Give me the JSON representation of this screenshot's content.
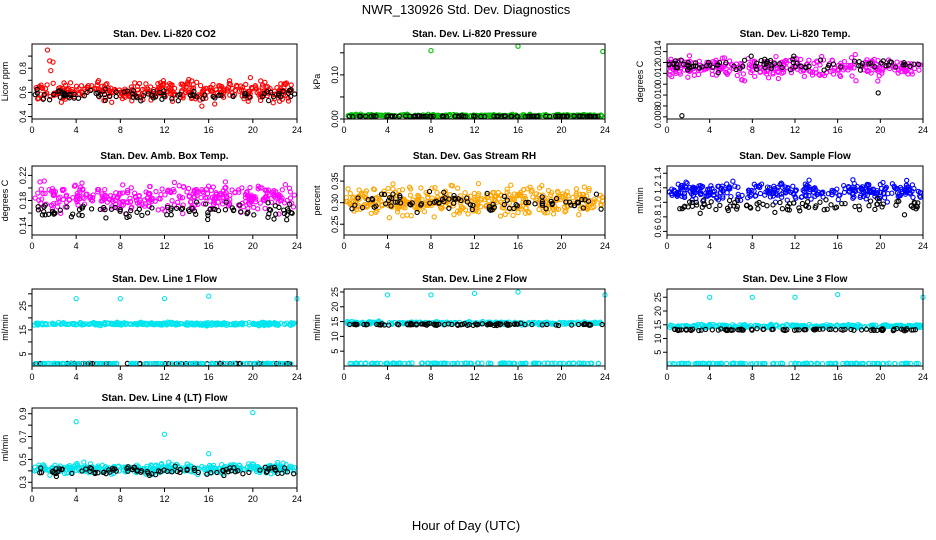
{
  "figure": {
    "title": "NWR_130926  Std. Dev. Diagnostics",
    "xlabel": "Hour of Day (UTC)"
  },
  "chart_data": [
    {
      "type": "scatter",
      "title": "Stan. Dev. Li-820 CO2",
      "ylabel": "Licor ppm",
      "xlim": [
        0,
        24
      ],
      "ylim": [
        0.38,
        1.0
      ],
      "yticks": [
        0.4,
        0.5,
        0.6,
        0.7,
        0.8,
        0.9
      ],
      "yticklabels": [
        "0.4",
        "",
        "0.6",
        "",
        "0.8",
        ""
      ],
      "xticks": [
        0,
        4,
        8,
        12,
        16,
        20,
        24
      ],
      "series": [
        {
          "color": "#ff0000",
          "baseline": 0.61,
          "spread": 0.07,
          "n": 340,
          "outliers": [
            [
              1.4,
              0.95
            ],
            [
              1.6,
              0.86
            ],
            [
              1.9,
              0.85
            ],
            [
              1.7,
              0.78
            ]
          ]
        },
        {
          "color": "#000000",
          "baseline": 0.58,
          "spread": 0.04,
          "n": 90
        }
      ]
    },
    {
      "type": "scatter",
      "title": "Stan. Dev. Li-820 Pressure",
      "ylabel": "kPa",
      "xlim": [
        0,
        24
      ],
      "ylim": [
        0.0,
        0.17
      ],
      "yticks": [
        0.0,
        0.05,
        0.1,
        0.15
      ],
      "yticklabels": [
        "0.00",
        "",
        "0.10",
        ""
      ],
      "xticks": [
        0,
        4,
        8,
        12,
        16,
        20,
        24
      ],
      "series": [
        {
          "color": "#00c000",
          "baseline": 0.008,
          "spread": 0.002,
          "n": 260,
          "outliers": [
            [
              8,
              0.155
            ],
            [
              16,
              0.165
            ],
            [
              23.8,
              0.153
            ]
          ]
        },
        {
          "color": "#000000",
          "baseline": 0.006,
          "spread": 0.001,
          "n": 90
        }
      ]
    },
    {
      "type": "scatter",
      "title": "Stan. Dev. Li-820 Temp.",
      "ylabel": "degrees C",
      "xlim": [
        0,
        24
      ],
      "ylim": [
        0.0078,
        0.0147
      ],
      "yticks": [
        0.008,
        0.009,
        0.01,
        0.011,
        0.012,
        0.013,
        0.014
      ],
      "yticklabels": [
        "0.008",
        "",
        "0.010",
        "",
        "0.012",
        "",
        "0.014"
      ],
      "xticks": [
        0,
        4,
        8,
        12,
        16,
        20,
        24
      ],
      "series": [
        {
          "color": "#ff00ff",
          "baseline": 0.0125,
          "spread": 0.0008,
          "n": 300
        },
        {
          "color": "#000000",
          "baseline": 0.0128,
          "spread": 0.0005,
          "n": 90,
          "outliers": [
            [
              1.4,
              0.0081
            ],
            [
              19.8,
              0.0102
            ]
          ]
        }
      ]
    },
    {
      "type": "scatter",
      "title": "Stan. Dev. Amb. Box Temp.",
      "ylabel": "degrees C",
      "xlim": [
        0,
        24
      ],
      "ylim": [
        0.125,
        0.235
      ],
      "yticks": [
        0.14,
        0.16,
        0.18,
        0.2,
        0.22
      ],
      "yticklabels": [
        "0.14",
        "",
        "0.18",
        "",
        "0.22"
      ],
      "xticks": [
        0,
        4,
        8,
        12,
        16,
        20,
        24
      ],
      "series": [
        {
          "color": "#ff00ff",
          "baseline": 0.185,
          "spread": 0.018,
          "n": 340
        },
        {
          "color": "#000000",
          "baseline": 0.163,
          "spread": 0.01,
          "n": 90
        }
      ]
    },
    {
      "type": "scatter",
      "title": "Stan. Dev. Gas Stream RH",
      "ylabel": "percent",
      "xlim": [
        0,
        24
      ],
      "ylim": [
        0.225,
        0.385
      ],
      "yticks": [
        0.25,
        0.3,
        0.35
      ],
      "yticklabels": [
        "0.25",
        "0.30",
        "0.35"
      ],
      "xticks": [
        0,
        4,
        8,
        12,
        16,
        20,
        24
      ],
      "series": [
        {
          "color": "#ffa500",
          "baseline": 0.305,
          "spread": 0.025,
          "n": 420
        },
        {
          "color": "#000000",
          "baseline": 0.3,
          "spread": 0.02,
          "n": 90
        }
      ]
    },
    {
      "type": "scatter",
      "title": "Stan. Dev. Sample Flow",
      "ylabel": "ml/min",
      "xlim": [
        0,
        24
      ],
      "ylim": [
        0.55,
        1.5
      ],
      "yticks": [
        0.6,
        0.8,
        1.0,
        1.2,
        1.4
      ],
      "yticklabels": [
        "0.6",
        "0.8",
        "1.0",
        "1.2",
        "1.4"
      ],
      "xticks": [
        0,
        4,
        8,
        12,
        16,
        20,
        24
      ],
      "series": [
        {
          "color": "#0000ff",
          "baseline": 1.15,
          "spread": 0.1,
          "n": 320
        },
        {
          "color": "#000000",
          "baseline": 0.95,
          "spread": 0.08,
          "n": 90
        }
      ]
    },
    {
      "type": "scatter",
      "title": "Stan. Dev. Line 1 Flow",
      "ylabel": "ml/min",
      "xlim": [
        0,
        24
      ],
      "ylim": [
        0,
        32
      ],
      "yticks": [
        5,
        10,
        15,
        20,
        25,
        30
      ],
      "yticklabels": [
        "5",
        "",
        "15",
        "",
        "25",
        ""
      ],
      "xticks": [
        0,
        4,
        8,
        12,
        16,
        20,
        24
      ],
      "series": [
        {
          "color": "#00e5ee",
          "baseline": 17.5,
          "spread": 0.5,
          "n": 300,
          "outliers": [
            [
              4,
              28
            ],
            [
              8,
              28
            ],
            [
              12,
              28
            ],
            [
              16,
              29
            ],
            [
              24,
              28
            ]
          ]
        },
        {
          "color": "#000000",
          "baseline": 1.0,
          "spread": 0.1,
          "n": 90
        },
        {
          "color": "#00e5ee",
          "baseline": 1.0,
          "spread": 0.1,
          "n": 120
        }
      ]
    },
    {
      "type": "scatter",
      "title": "Stan. Dev. Line 2 Flow",
      "ylabel": "ml/min",
      "xlim": [
        0,
        24
      ],
      "ylim": [
        0,
        26
      ],
      "yticks": [
        5,
        10,
        15,
        20,
        25
      ],
      "yticklabels": [
        "5",
        "10",
        "15",
        "20",
        "25"
      ],
      "xticks": [
        0,
        4,
        8,
        12,
        16,
        20,
        24
      ],
      "series": [
        {
          "color": "#00e5ee",
          "baseline": 14.5,
          "spread": 0.4,
          "n": 260,
          "outliers": [
            [
              4,
              24
            ],
            [
              8,
              24
            ],
            [
              12,
              24.5
            ],
            [
              16,
              25
            ],
            [
              24,
              24
            ]
          ]
        },
        {
          "color": "#000000",
          "baseline": 14,
          "spread": 0.3,
          "n": 90
        },
        {
          "color": "#00e5ee",
          "baseline": 0.9,
          "spread": 0.1,
          "n": 120
        }
      ]
    },
    {
      "type": "scatter",
      "title": "Stan. Dev. Line 3 Flow",
      "ylabel": "ml/min",
      "xlim": [
        0,
        24
      ],
      "ylim": [
        0,
        28
      ],
      "yticks": [
        5,
        10,
        15,
        20,
        25
      ],
      "yticklabels": [
        "5",
        "10",
        "15",
        "20",
        "25"
      ],
      "xticks": [
        0,
        4,
        8,
        12,
        16,
        20,
        24
      ],
      "series": [
        {
          "color": "#00e5ee",
          "baseline": 14.5,
          "spread": 0.5,
          "n": 260,
          "outliers": [
            [
              4,
              25
            ],
            [
              8,
              25
            ],
            [
              12,
              25
            ],
            [
              16,
              26
            ],
            [
              24,
              25
            ]
          ]
        },
        {
          "color": "#000000",
          "baseline": 13.2,
          "spread": 0.3,
          "n": 90
        },
        {
          "color": "#00e5ee",
          "baseline": 0.9,
          "spread": 0.1,
          "n": 120
        }
      ]
    },
    {
      "type": "scatter",
      "title": "Stan. Dev. Line 4 (LT) Flow",
      "ylabel": "ml/min",
      "xlim": [
        0,
        24
      ],
      "ylim": [
        0.25,
        0.95
      ],
      "yticks": [
        0.3,
        0.4,
        0.5,
        0.6,
        0.7,
        0.8,
        0.9
      ],
      "yticklabels": [
        "0.3",
        "",
        "0.5",
        "",
        "0.7",
        "",
        "0.9"
      ],
      "xticks": [
        0,
        4,
        8,
        12,
        16,
        20,
        24
      ],
      "series": [
        {
          "color": "#00e5ee",
          "baseline": 0.42,
          "spread": 0.035,
          "n": 360,
          "outliers": [
            [
              4,
              0.83
            ],
            [
              12,
              0.72
            ],
            [
              20,
              0.91
            ],
            [
              16,
              0.55
            ]
          ]
        },
        {
          "color": "#000000",
          "baseline": 0.4,
          "spread": 0.03,
          "n": 90
        }
      ]
    }
  ]
}
